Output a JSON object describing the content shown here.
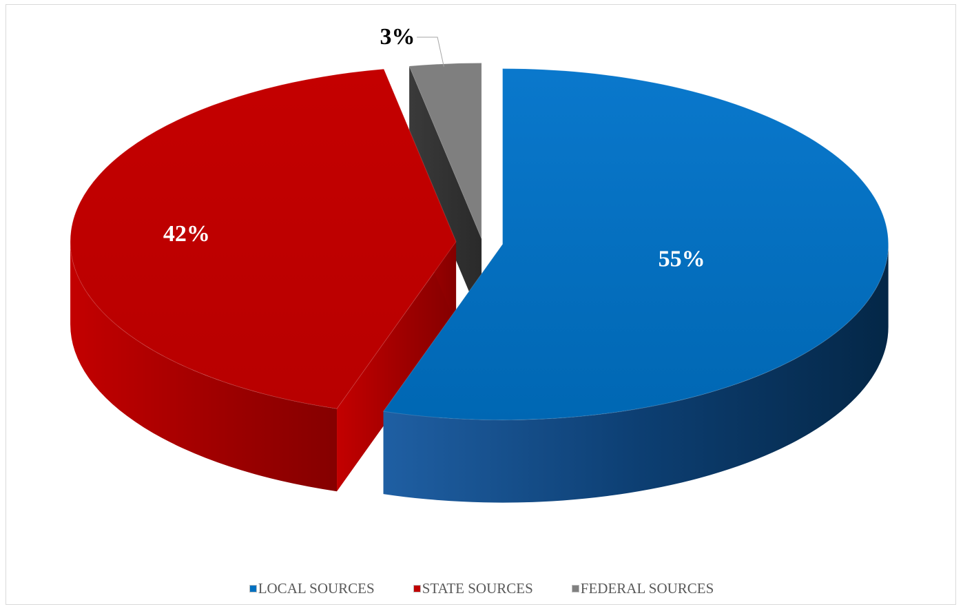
{
  "chart_data": {
    "type": "pie",
    "style": "3d-exploded",
    "labels": [
      "LOCAL SOURCES",
      "STATE SOURCES",
      "FEDERAL SOURCES"
    ],
    "values": [
      55,
      42,
      3
    ],
    "data_labels": [
      "55%",
      "42%",
      "3%"
    ],
    "colors": [
      "#0070c0",
      "#c00000",
      "#808080"
    ],
    "legend_position": "bottom",
    "title": ""
  },
  "legend": {
    "items": [
      {
        "label": "LOCAL SOURCES",
        "color": "#0070c0"
      },
      {
        "label": "STATE SOURCES",
        "color": "#c00000"
      },
      {
        "label": "FEDERAL SOURCES",
        "color": "#808080"
      }
    ]
  }
}
